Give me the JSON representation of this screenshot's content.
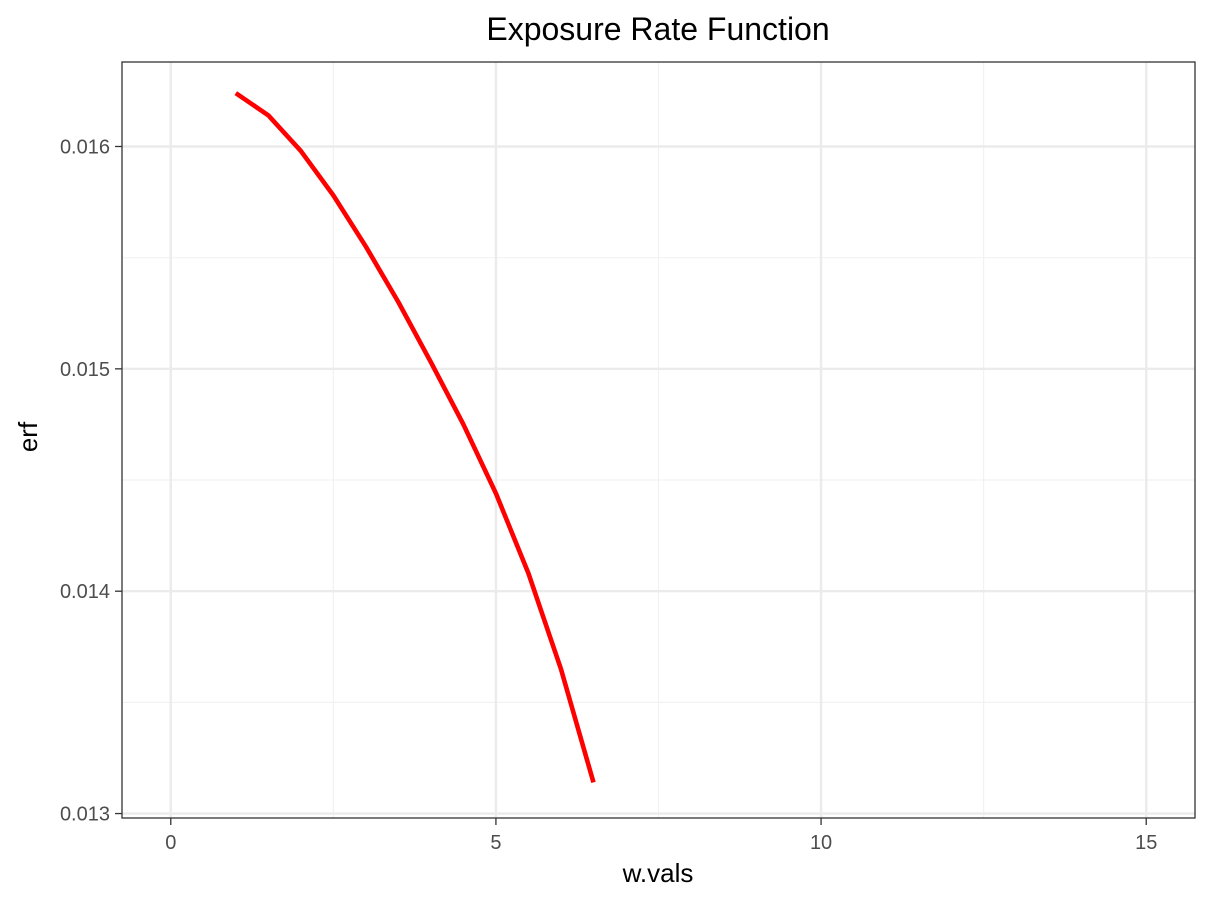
{
  "chart_data": {
    "type": "line",
    "title": "Exposure Rate Function",
    "xlabel": "w.vals",
    "ylabel": "erf",
    "xlim": [
      -0.75,
      15.75
    ],
    "ylim": [
      12.98,
      16.38
    ],
    "x_ticks": [
      0,
      5,
      10,
      15
    ],
    "x_tick_labels": [
      "0",
      "5",
      "10",
      "15"
    ],
    "x_minor_ticks": [
      2.5,
      7.5,
      12.5
    ],
    "y_ticks": [
      13,
      14,
      15,
      16
    ],
    "y_tick_labels": [
      "0.013",
      "0.014",
      "0.015",
      "0.016"
    ],
    "y_minor_ticks": [
      13.5,
      14.5,
      15.5
    ],
    "y_scale_note": "y values in thousandths (erf x 1000)",
    "grid": true,
    "series": [
      {
        "color": "#ff0000",
        "x": [
          1,
          1.5,
          2,
          2.5,
          3,
          3.5,
          4,
          4.5,
          5,
          5.5,
          6,
          6.5
        ],
        "y": [
          16.24,
          16.14,
          15.98,
          15.78,
          15.55,
          15.3,
          15.03,
          14.75,
          14.44,
          14.08,
          13.65,
          13.14
        ]
      }
    ]
  },
  "colors": {
    "line": "#ff0000",
    "grid_major": "#ebebeb",
    "grid_minor": "#f2f2f2",
    "panel_border": "#333333",
    "tick_label": "#4d4d4d"
  }
}
